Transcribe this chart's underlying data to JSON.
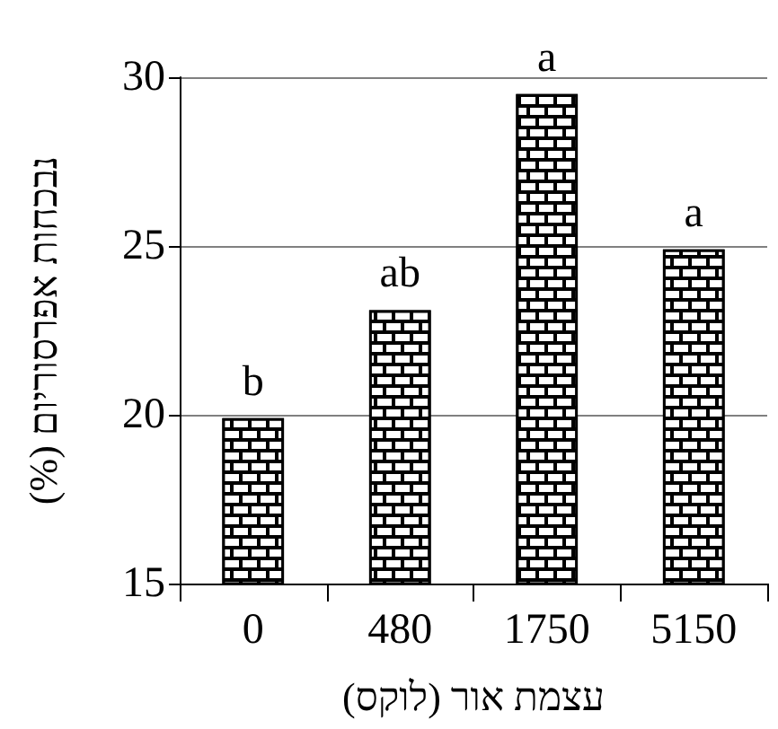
{
  "chart_data": {
    "type": "bar",
    "xlabel": "עצמת אור (לוקס)",
    "ylabel": "נבכחות אפרסוריום (%)",
    "categories": [
      "0",
      "480",
      "1750",
      "5150"
    ],
    "values": [
      19.9,
      23.1,
      29.5,
      24.9
    ],
    "color": "#000000",
    "ylim": [
      15,
      30
    ],
    "yticks": [
      15,
      20,
      25,
      30
    ],
    "grid": "y",
    "annotations": [
      {
        "text": "b",
        "x": "0",
        "y": 19.9
      },
      {
        "text": "ab",
        "x": "480",
        "y": 23.1
      },
      {
        "text": "a",
        "x": "1750",
        "y": 29.5
      },
      {
        "text": "a",
        "x": "5150",
        "y": 24.9
      }
    ]
  }
}
